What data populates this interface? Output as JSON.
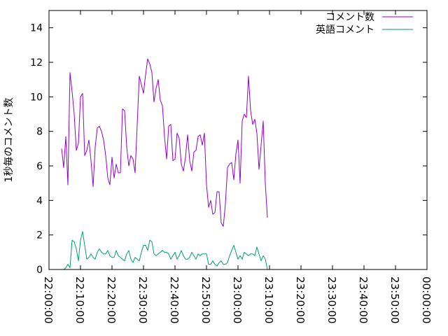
{
  "chart_data": {
    "type": "line",
    "title": "",
    "xlabel": "",
    "ylabel": "1秒毎のコメント数",
    "xlim": [
      "22:00:00",
      "00:00:00"
    ],
    "ylim": [
      0,
      15
    ],
    "y_ticks": [
      "0",
      "2",
      "4",
      "6",
      "8",
      "10",
      "12",
      "14"
    ],
    "x_ticks": [
      "22:00:00",
      "22:10:00",
      "22:20:00",
      "22:30:00",
      "22:40:00",
      "22:50:00",
      "23:00:00",
      "23:10:00",
      "23:20:00",
      "23:30:00",
      "23:40:00",
      "23:50:00",
      "00:00:00"
    ],
    "grid": false,
    "legend_position": "top-right",
    "x_start": "22:04:00",
    "x_step_seconds": 40,
    "series": [
      {
        "name": "コメント数",
        "color": "#9400d3",
        "values": [
          7.0,
          5.9,
          7.7,
          4.9,
          11.4,
          10.3,
          9.0,
          6.9,
          7.3,
          10.0,
          10.2,
          6.6,
          6.9,
          7.5,
          6.3,
          4.8,
          7.1,
          8.2,
          8.3,
          8.0,
          7.5,
          6.6,
          5.3,
          4.9,
          6.5,
          5.3,
          6.1,
          5.6,
          5.6,
          9.3,
          9.2,
          7.1,
          6.0,
          6.6,
          6.4,
          5.6,
          8.4,
          11.2,
          10.7,
          10.2,
          11.3,
          12.2,
          11.9,
          11.4,
          9.7,
          10.5,
          11.0,
          9.8,
          9.5,
          7.7,
          6.4,
          8.3,
          8.4,
          6.3,
          6.4,
          7.9,
          7.6,
          6.1,
          5.7,
          6.5,
          7.8,
          6.3,
          5.7,
          6.8,
          6.9,
          7.7,
          7.8,
          7.2,
          7.9,
          4.9,
          3.6,
          4.0,
          3.2,
          3.3,
          4.5,
          4.5,
          2.7,
          2.5,
          3.8,
          5.9,
          6.1,
          6.2,
          5.2,
          6.7,
          7.5,
          5.0,
          8.6,
          9.0,
          8.8,
          11.2,
          9.2,
          8.4,
          8.7,
          7.9,
          5.8,
          7.2,
          8.6,
          5.0,
          3.0
        ]
      },
      {
        "name": "英語コメント",
        "color": "#009e73",
        "values": [
          0.0,
          0.0,
          0.1,
          0.3,
          0.1,
          1.7,
          1.6,
          1.2,
          0.5,
          1.7,
          2.2,
          1.4,
          0.6,
          0.7,
          0.9,
          0.7,
          0.6,
          1.0,
          1.2,
          1.0,
          0.9,
          0.9,
          1.1,
          0.8,
          0.7,
          0.7,
          1.1,
          0.8,
          0.7,
          0.6,
          0.5,
          0.9,
          1.1,
          0.6,
          0.4,
          0.7,
          0.6,
          0.5,
          1.0,
          1.4,
          1.4,
          1.1,
          1.7,
          1.6,
          0.9,
          0.8,
          0.9,
          1.0,
          1.1,
          1.0,
          1.0,
          0.9,
          0.6,
          0.8,
          1.0,
          0.6,
          0.8,
          1.1,
          0.8,
          0.6,
          0.6,
          0.7,
          1.0,
          0.8,
          0.6,
          0.9,
          0.8,
          0.9,
          0.9,
          0.9,
          0.3,
          0.3,
          0.5,
          0.3,
          0.2,
          0.4,
          0.5,
          0.3,
          0.3,
          0.4,
          0.8,
          1.1,
          1.4,
          1.0,
          0.6,
          0.8,
          0.6,
          1.0,
          0.9,
          0.8,
          0.9,
          0.9,
          0.8,
          1.3,
          0.9,
          0.5,
          0.8,
          0.6,
          0.0
        ]
      }
    ]
  }
}
